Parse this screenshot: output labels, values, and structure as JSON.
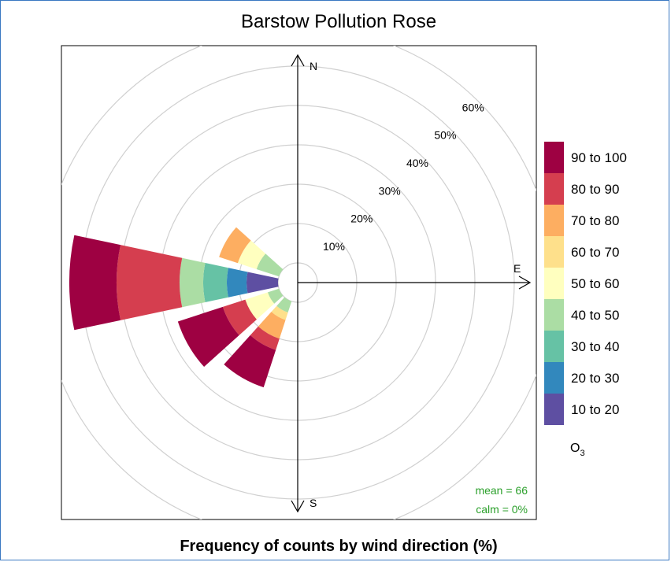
{
  "chart_data": {
    "type": "polar-bar",
    "title": "Barstow Pollution Rose",
    "xlabel": "Frequency of counts by wind direction (%)",
    "directions": {
      "north": "N",
      "east": "E",
      "south": "S"
    },
    "ring_labels": [
      "10%",
      "20%",
      "30%",
      "40%",
      "50%",
      "60%"
    ],
    "ring_values": [
      10,
      20,
      30,
      40,
      50,
      60
    ],
    "rlim": [
      0,
      60
    ],
    "legend_title": "O",
    "legend_title_sub": "3",
    "bins": [
      {
        "label": "10 to 20",
        "color": "#5e4fa2"
      },
      {
        "label": "20 to 30",
        "color": "#3288bd"
      },
      {
        "label": "30 to 40",
        "color": "#66c2a5"
      },
      {
        "label": "40 to 50",
        "color": "#abdda4"
      },
      {
        "label": "50 to 60",
        "color": "#ffffbf"
      },
      {
        "label": "60 to 70",
        "color": "#fee08b"
      },
      {
        "label": "70 to 80",
        "color": "#fdae61"
      },
      {
        "label": "80 to 90",
        "color": "#d53e4f"
      },
      {
        "label": "90 to 100",
        "color": "#9e0142"
      }
    ],
    "sectors": [
      {
        "direction_deg": 210,
        "cumulative": [
          0,
          0,
          0,
          3,
          3,
          5,
          10,
          13,
          23
        ]
      },
      {
        "direction_deg": 240,
        "cumulative": [
          0,
          0,
          0,
          3,
          9,
          9,
          9,
          15,
          27
        ]
      },
      {
        "direction_deg": 270,
        "cumulative": [
          8,
          13,
          19,
          25,
          25,
          25,
          25,
          41,
          53
        ]
      },
      {
        "direction_deg": 300,
        "cumulative": [
          0,
          0,
          0,
          6,
          11,
          11,
          16,
          16,
          16
        ]
      }
    ],
    "annotations": {
      "mean": "mean = 66",
      "calm": "calm = 0%"
    },
    "legend_position": "right",
    "grid": true
  }
}
